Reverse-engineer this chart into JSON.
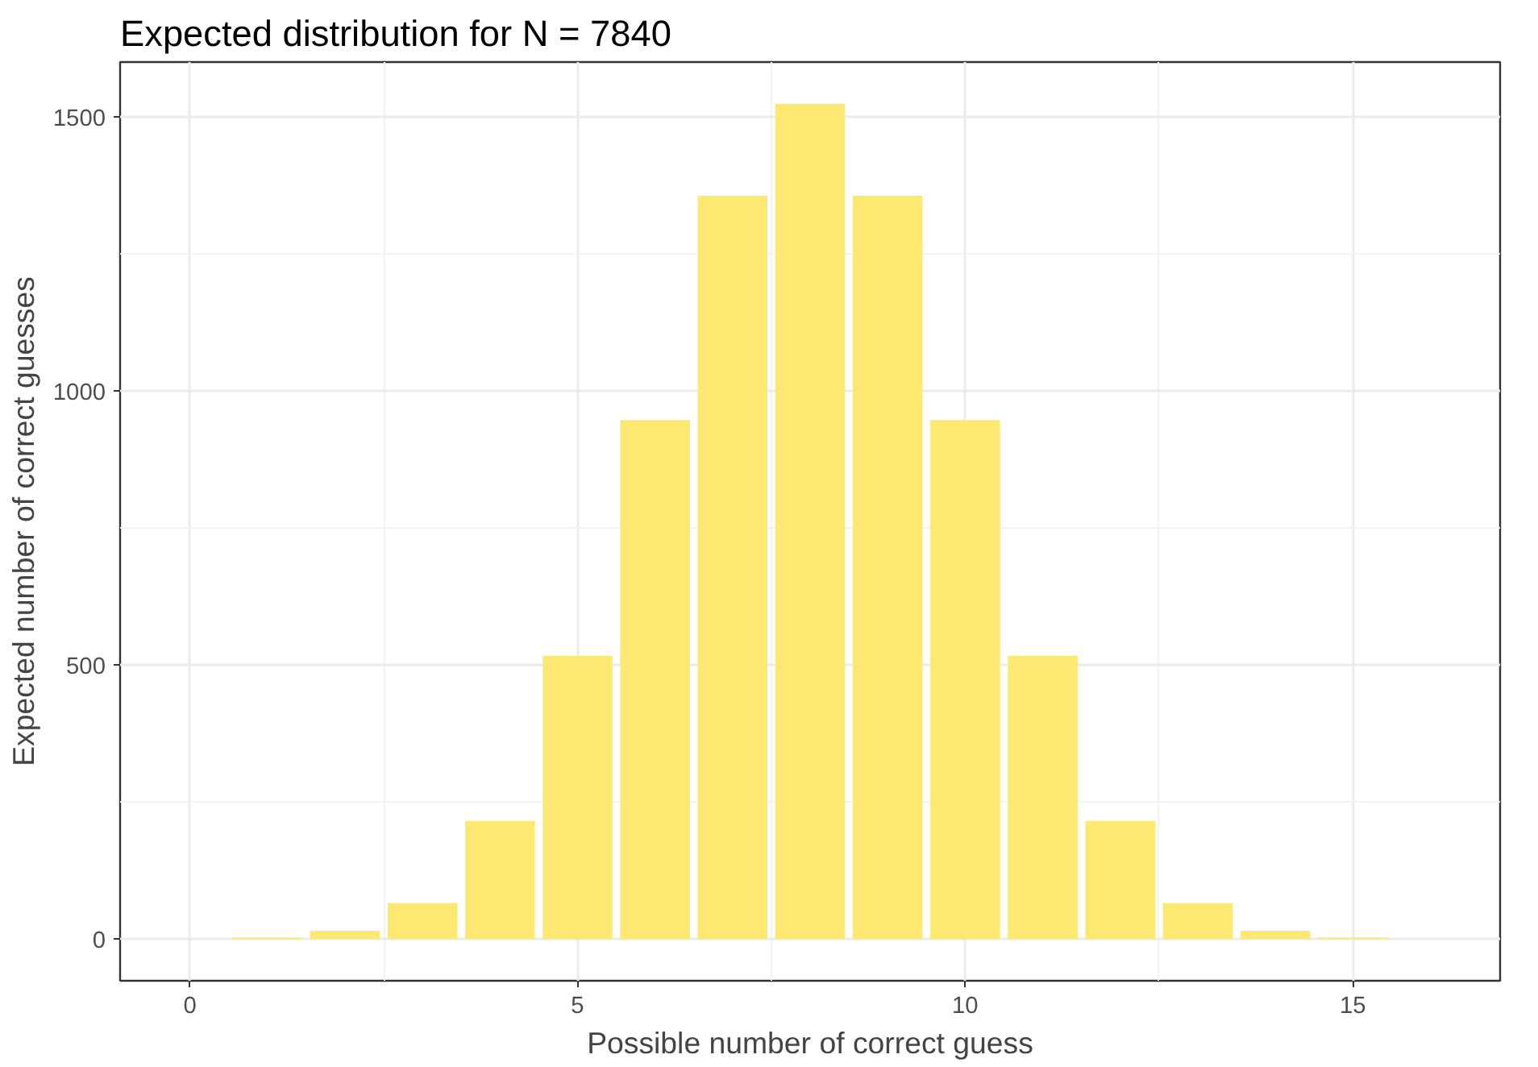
{
  "chart_data": {
    "type": "bar",
    "title": "Expected distribution for N = 7840",
    "xlabel": "Possible number of correct guess",
    "ylabel": "Expected number of correct guesses",
    "x": [
      0,
      1,
      2,
      3,
      4,
      5,
      6,
      7,
      8,
      9,
      10,
      11,
      12,
      13,
      14,
      15,
      16
    ],
    "values": [
      0,
      3,
      15,
      66,
      216,
      517,
      947,
      1356,
      1524,
      1356,
      947,
      517,
      216,
      66,
      15,
      3,
      0
    ],
    "color": "#fde872",
    "xlim": [
      -0.9,
      16.9
    ],
    "xticks": [
      0,
      5,
      10,
      15
    ],
    "ylim": [
      -76,
      1600
    ],
    "yticks": [
      0,
      500,
      1000,
      1500
    ],
    "grid": true
  }
}
